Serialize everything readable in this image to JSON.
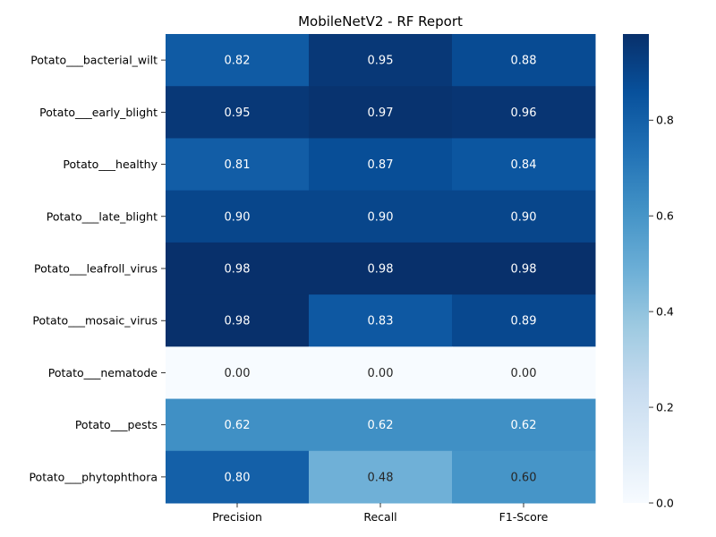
{
  "chart_data": {
    "type": "heatmap",
    "title": "MobileNetV2 - RF Report",
    "columns": [
      "Precision",
      "Recall",
      "F1-Score"
    ],
    "rows": [
      "Potato___bacterial_wilt",
      "Potato___early_blight",
      "Potato___healthy",
      "Potato___late_blight",
      "Potato___leafroll_virus",
      "Potato___mosaic_virus",
      "Potato___nematode",
      "Potato___pests",
      "Potato___phytophthora"
    ],
    "values": [
      [
        0.82,
        0.95,
        0.88
      ],
      [
        0.95,
        0.97,
        0.96
      ],
      [
        0.81,
        0.87,
        0.84
      ],
      [
        0.9,
        0.9,
        0.9
      ],
      [
        0.98,
        0.98,
        0.98
      ],
      [
        0.98,
        0.83,
        0.89
      ],
      [
        0.0,
        0.0,
        0.0
      ],
      [
        0.62,
        0.62,
        0.62
      ],
      [
        0.8,
        0.48,
        0.6
      ]
    ],
    "value_labels": [
      [
        "0.82",
        "0.95",
        "0.88"
      ],
      [
        "0.95",
        "0.97",
        "0.96"
      ],
      [
        "0.81",
        "0.87",
        "0.84"
      ],
      [
        "0.90",
        "0.90",
        "0.90"
      ],
      [
        "0.98",
        "0.98",
        "0.98"
      ],
      [
        "0.98",
        "0.83",
        "0.89"
      ],
      [
        "0.00",
        "0.00",
        "0.00"
      ],
      [
        "0.62",
        "0.62",
        "0.62"
      ],
      [
        "0.80",
        "0.48",
        "0.60"
      ]
    ],
    "color_range": [
      0.0,
      0.98
    ],
    "colormap": "Blues",
    "colorbar_ticks": [
      0.0,
      0.2,
      0.4,
      0.6,
      0.8
    ],
    "colorbar_tick_labels": [
      "0.0",
      "0.2",
      "0.4",
      "0.6",
      "0.8"
    ],
    "text_color_dark": "#262626",
    "text_color_light": "#ffffff"
  }
}
